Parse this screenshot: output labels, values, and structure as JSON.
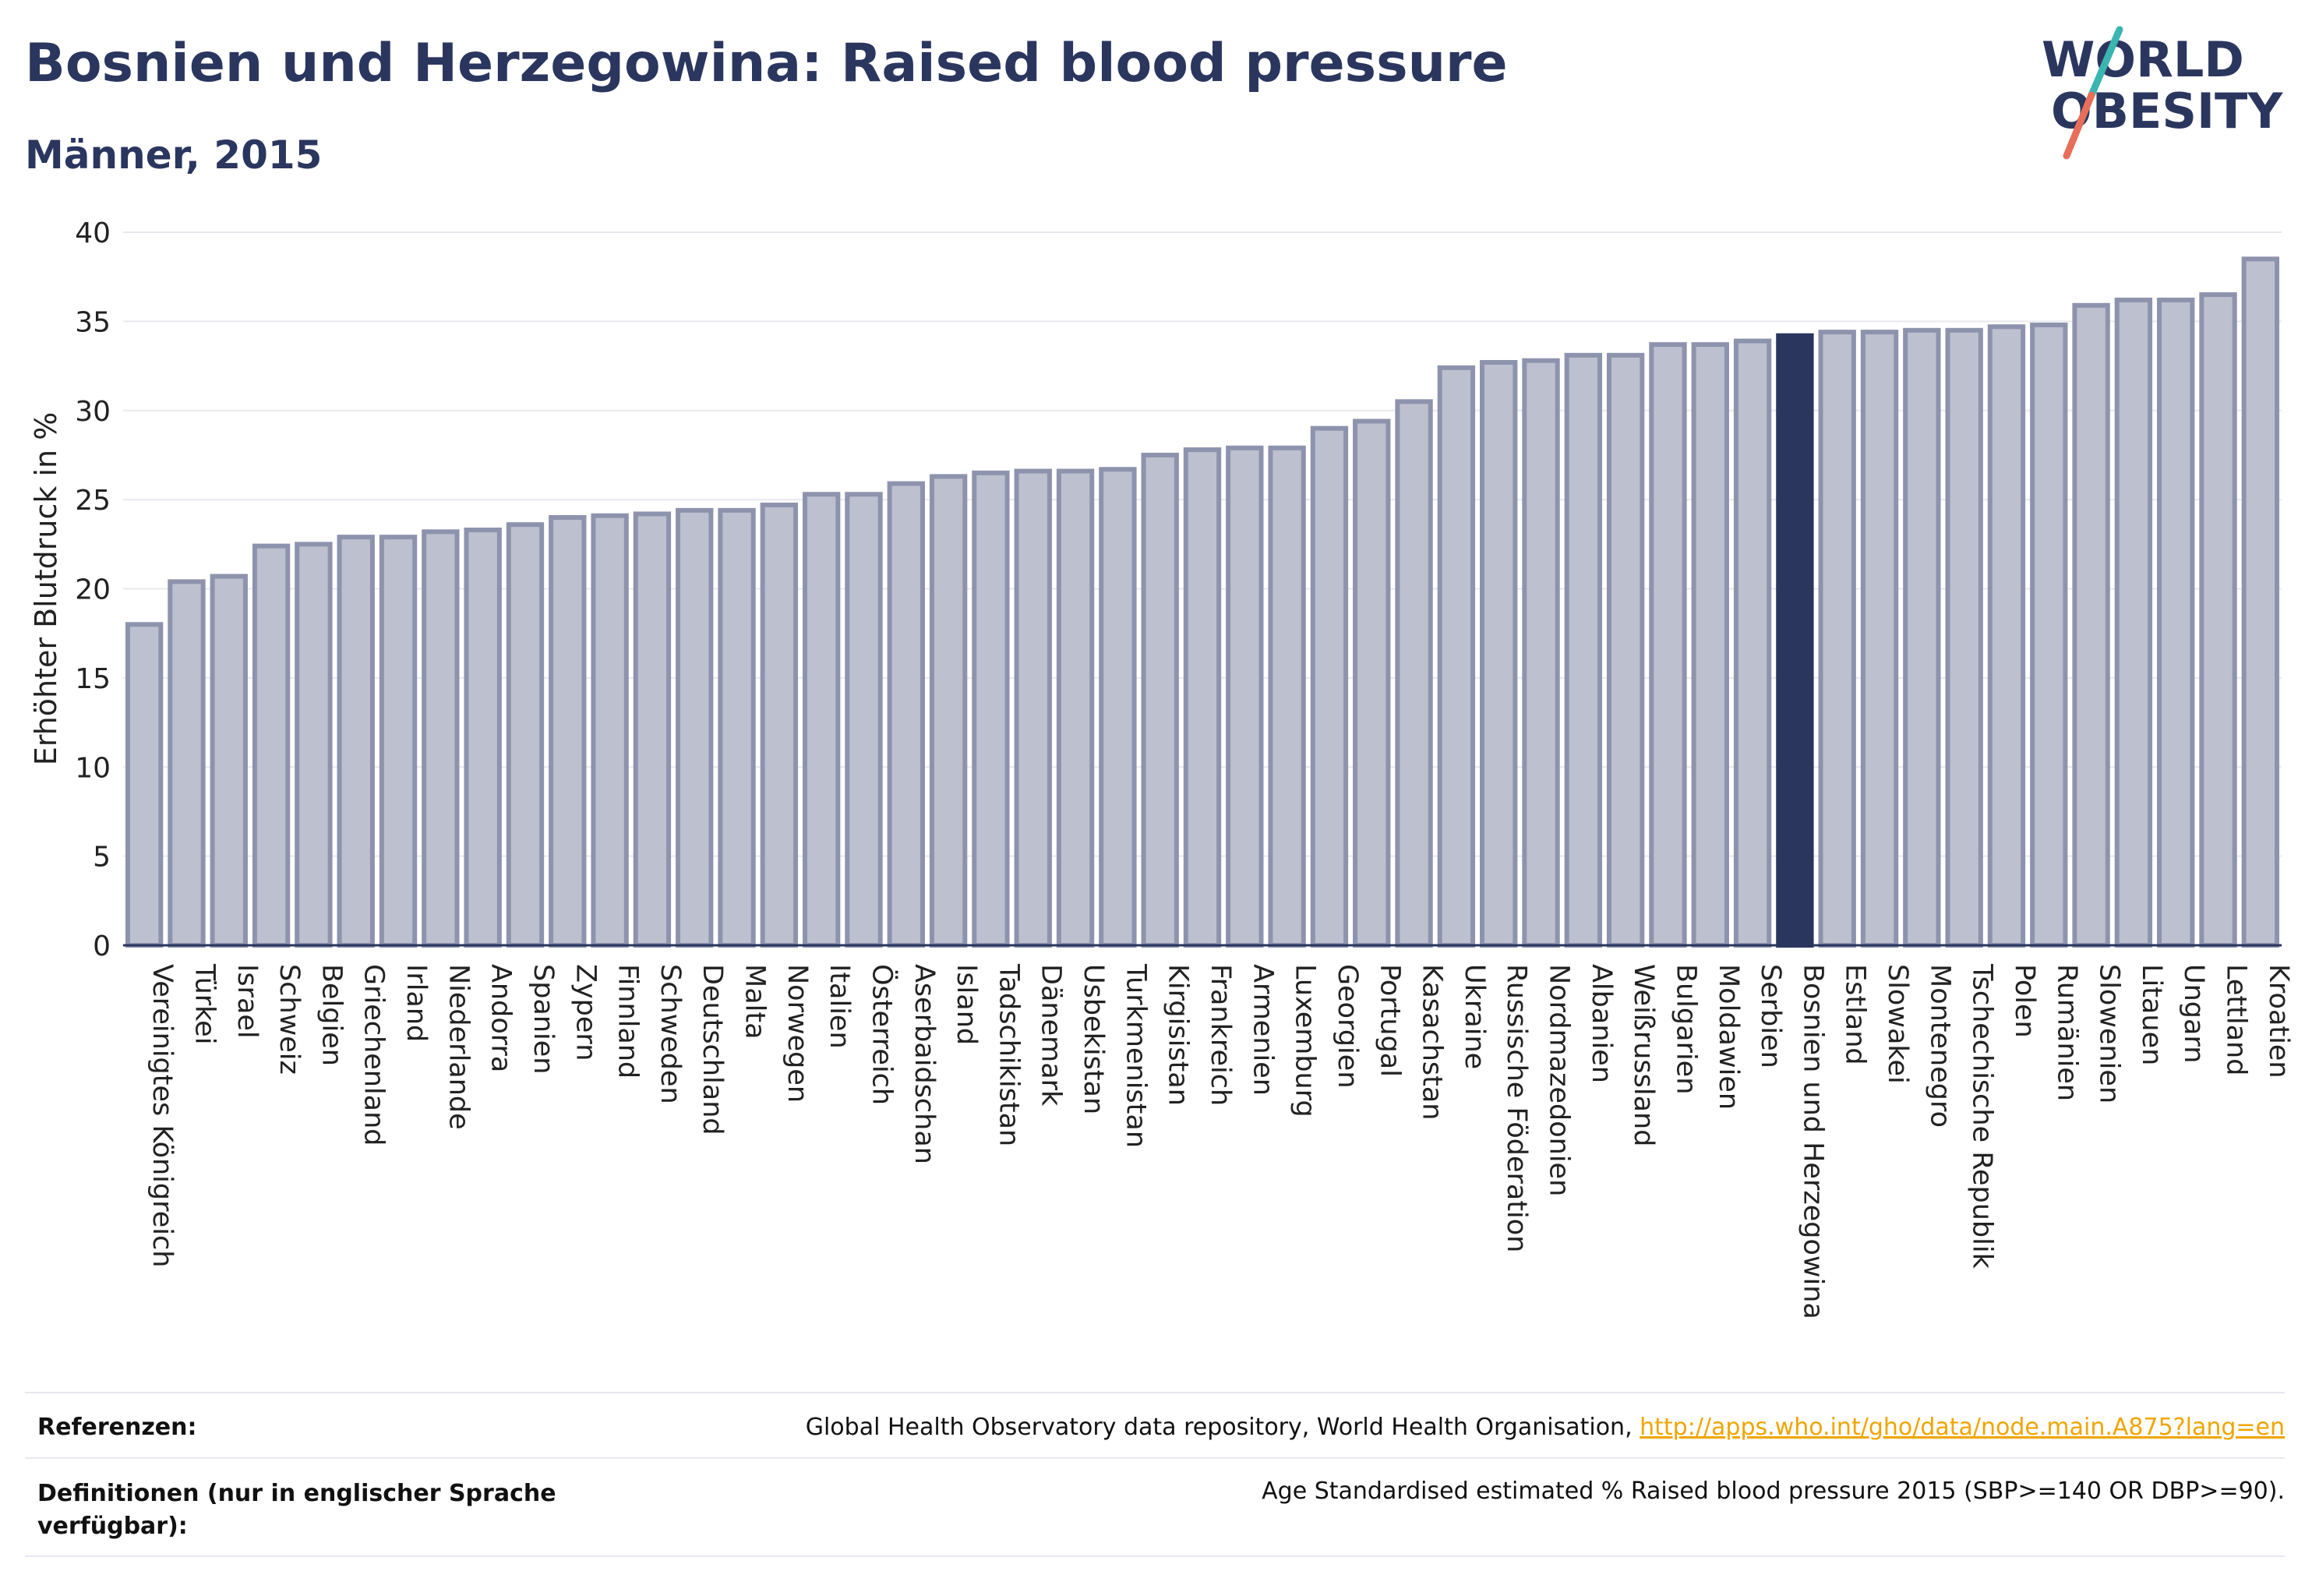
{
  "header": {
    "title": "Bosnien und Herzegowina: Raised blood pressure",
    "subtitle": "Männer, 2015",
    "logo_line1": "WORLD",
    "logo_line2": "OBESITY"
  },
  "colors": {
    "bar": "#bcc0cf",
    "bar_stroke": "#8e93ad",
    "highlight": "#2b365f",
    "title": "#2b365f",
    "link": "#f0a500",
    "logo_teal": "#3ab5b0",
    "logo_coral": "#e76f5a"
  },
  "chart_data": {
    "type": "bar",
    "ylabel": "Erhöhter Blutdruck in %",
    "ylim": [
      0,
      40
    ],
    "yticks": [
      0,
      5,
      10,
      15,
      20,
      25,
      30,
      35,
      40
    ],
    "grid": true,
    "highlight": "Bosnien und Herzegowina",
    "categories": [
      "Vereinigtes Königreich",
      "Türkei",
      "Israel",
      "Schweiz",
      "Belgien",
      "Griechenland",
      "Irland",
      "Niederlande",
      "Andorra",
      "Spanien",
      "Zypern",
      "Finnland",
      "Schweden",
      "Deutschland",
      "Malta",
      "Norwegen",
      "Italien",
      "Österreich",
      "Aserbaidschan",
      "Island",
      "Tadschikistan",
      "Dänemark",
      "Usbekistan",
      "Turkmenistan",
      "Kirgisistan",
      "Frankreich",
      "Armenien",
      "Luxemburg",
      "Georgien",
      "Portugal",
      "Kasachstan",
      "Ukraine",
      "Russische Föderation",
      "Nordmazedonien",
      "Albanien",
      "Weißrussland",
      "Bulgarien",
      "Moldawien",
      "Serbien",
      "Bosnien und Herzegowina",
      "Estland",
      "Slowakei",
      "Montenegro",
      "Tschechische Republik",
      "Polen",
      "Rumänien",
      "Slowenien",
      "Litauen",
      "Ungarn",
      "Lettland",
      "Kroatien"
    ],
    "values": [
      18.0,
      20.4,
      20.7,
      22.4,
      22.5,
      22.9,
      22.9,
      23.2,
      23.3,
      23.6,
      24.0,
      24.1,
      24.2,
      24.4,
      24.4,
      24.7,
      25.3,
      25.3,
      25.9,
      26.3,
      26.5,
      26.6,
      26.6,
      26.7,
      27.5,
      27.8,
      27.9,
      27.9,
      29.0,
      29.4,
      30.5,
      32.4,
      32.7,
      32.8,
      33.1,
      33.1,
      33.7,
      33.7,
      33.9,
      34.2,
      34.4,
      34.4,
      34.5,
      34.5,
      34.7,
      34.8,
      35.9,
      36.2,
      36.2,
      36.5,
      38.5
    ]
  },
  "footer": {
    "references_label": "Referenzen:",
    "references_text": "Global Health Observatory data repository, World Health Organisation, ",
    "references_link": "http://apps.who.int/gho/data/node.main.A875?lang=en",
    "definitions_label": "Definitionen (nur in englischer Sprache verfügbar):",
    "definitions_text": "Age Standardised estimated % Raised blood pressure 2015 (SBP>=140 OR DBP>=90)."
  }
}
